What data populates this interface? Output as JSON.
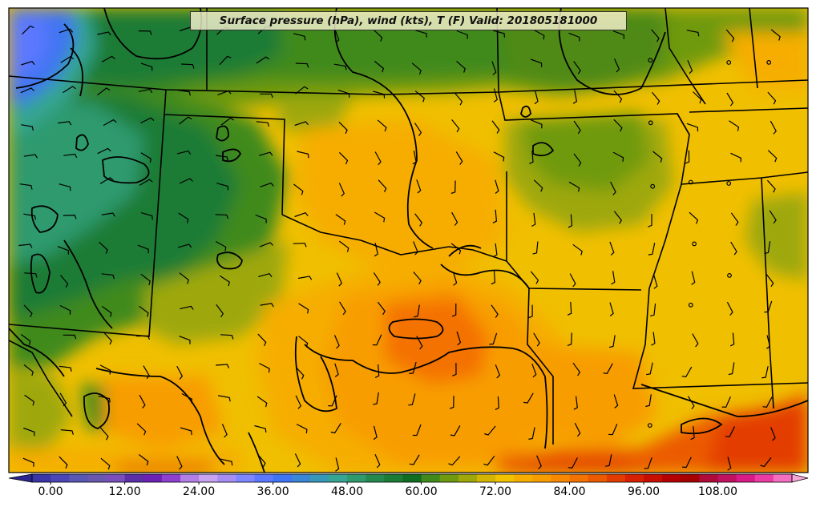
{
  "title": "Surface pressure (hPa), wind (kts), T (F) Valid: 201805181000",
  "colorbar": {
    "tick_labels": [
      "0.00",
      "12.00",
      "24.00",
      "36.00",
      "48.00",
      "60.00",
      "72.00",
      "84.00",
      "96.00",
      "108.00"
    ],
    "tick_values": [
      0,
      12,
      24,
      36,
      48,
      60,
      72,
      84,
      96,
      108
    ],
    "range": [
      -3,
      120
    ],
    "extend": "both",
    "colors": [
      "#3a36a8",
      "#4b46b8",
      "#5757b4",
      "#6a57b0",
      "#7b4fbb",
      "#5a2fa8",
      "#6b21b3",
      "#8e3fd0",
      "#b27fe6",
      "#c7a3f0",
      "#a78ef5",
      "#7f87ff",
      "#5c78ff",
      "#3f74f2",
      "#3b86d6",
      "#3797b8",
      "#36a592",
      "#2f9a6e",
      "#25894e",
      "#1b7c36",
      "#0f6d21",
      "#3f8a1a",
      "#6f9a10",
      "#9ea808",
      "#d4b504",
      "#f2c200",
      "#f6ad00",
      "#f89d00",
      "#f88800",
      "#f47200",
      "#ec5a00",
      "#e33c00",
      "#d92000",
      "#c70e00",
      "#b40000",
      "#a60000",
      "#b00a3a",
      "#c01060",
      "#d81b86",
      "#ea3ca4",
      "#f46fc0"
    ]
  },
  "chart_data": {
    "type": "heatmap",
    "variable": "T (F)",
    "extra_layers": [
      "Surface pressure (hPa)",
      "wind (kts)"
    ],
    "valid": "201805181000"
  }
}
